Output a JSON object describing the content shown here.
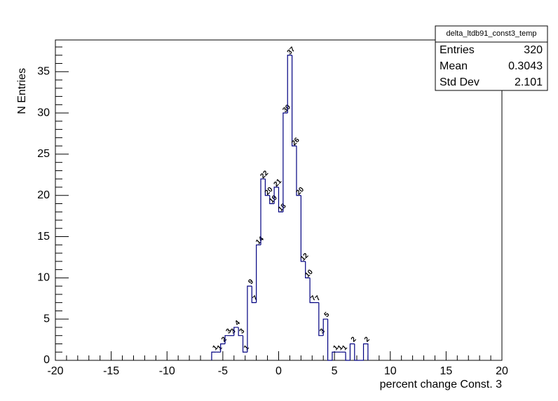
{
  "chart_data": {
    "type": "histogram",
    "bins": [
      -6,
      -5.6,
      -5.2,
      -4.8,
      -4.4,
      -4,
      -3.6,
      -3.2,
      -2.8,
      -2.4,
      -2,
      -1.6,
      -1.2,
      -0.8,
      -0.4,
      0,
      0.4,
      0.8,
      1.2,
      1.6,
      2,
      2.4,
      2.8,
      3.2,
      3.6,
      4,
      4.4,
      4.8,
      5.2,
      5.6,
      6,
      6.4,
      6.8,
      7.2,
      7.6,
      8
    ],
    "values": [
      1,
      1,
      2,
      3,
      3,
      4,
      3,
      1,
      9,
      7,
      14,
      22,
      20,
      19,
      21,
      18,
      30,
      37,
      26,
      20,
      12,
      10,
      7,
      7,
      3,
      5,
      0,
      1,
      1,
      1,
      0,
      2,
      0,
      0,
      2
    ],
    "color": "#000080",
    "xlim": [
      -20,
      20
    ],
    "xticks": [
      -20,
      -15,
      -10,
      -5,
      0,
      5,
      10,
      15,
      20
    ],
    "ylim": [
      0,
      38.85
    ],
    "yticks": [
      0,
      5,
      10,
      15,
      20,
      25,
      30,
      35
    ],
    "x_label": "percent change Const. 3",
    "y_label": "N Entries",
    "stats": {
      "title": "delta_ltdb91_const3_temp",
      "rows": [
        {
          "name": "Entries",
          "value": 320
        },
        {
          "name": "Mean",
          "value": 0.3043
        },
        {
          "name": "Std Dev",
          "value": 2.101
        }
      ]
    }
  }
}
